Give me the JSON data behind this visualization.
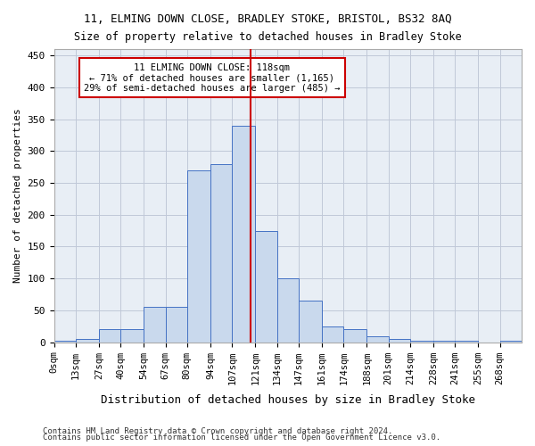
{
  "title1": "11, ELMING DOWN CLOSE, BRADLEY STOKE, BRISTOL, BS32 8AQ",
  "title2": "Size of property relative to detached houses in Bradley Stoke",
  "xlabel": "Distribution of detached houses by size in Bradley Stoke",
  "ylabel": "Number of detached properties",
  "bin_labels": [
    "0sqm",
    "13sqm",
    "27sqm",
    "40sqm",
    "54sqm",
    "67sqm",
    "80sqm",
    "94sqm",
    "107sqm",
    "121sqm",
    "134sqm",
    "147sqm",
    "161sqm",
    "174sqm",
    "188sqm",
    "201sqm",
    "214sqm",
    "228sqm",
    "241sqm",
    "255sqm",
    "268sqm"
  ],
  "bar_heights": [
    2,
    5,
    20,
    20,
    55,
    55,
    270,
    280,
    340,
    175,
    100,
    65,
    25,
    20,
    10,
    5,
    2,
    2,
    2,
    0,
    2
  ],
  "bar_color": "#c9d9ed",
  "bar_edge_color": "#4472c4",
  "grid_color": "#c0c8d8",
  "bg_color": "#e8eef5",
  "property_line_x": 118,
  "annotation_text": "11 ELMING DOWN CLOSE: 118sqm\n← 71% of detached houses are smaller (1,165)\n29% of semi-detached houses are larger (485) →",
  "annotation_box_color": "#ffffff",
  "annotation_box_edge": "#cc0000",
  "vline_color": "#cc0000",
  "footer1": "Contains HM Land Registry data © Crown copyright and database right 2024.",
  "footer2": "Contains public sector information licensed under the Open Government Licence v3.0.",
  "ylim": [
    0,
    460
  ],
  "bin_edges": [
    0,
    13,
    27,
    40,
    54,
    67,
    80,
    94,
    107,
    121,
    134,
    147,
    161,
    174,
    188,
    201,
    214,
    228,
    241,
    255,
    268,
    281
  ]
}
